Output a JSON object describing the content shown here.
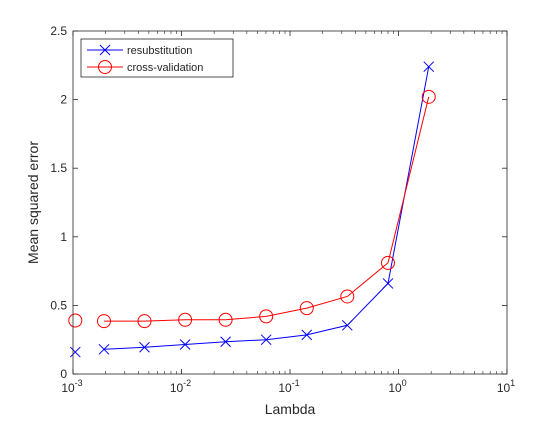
{
  "chart_data": {
    "type": "line",
    "title": "",
    "xlabel": "Lambda",
    "ylabel": "Mean squared error",
    "xscale": "log",
    "xlim": [
      0.001,
      10
    ],
    "ylim": [
      0,
      2.5
    ],
    "grid": false,
    "legend_position": "top-left",
    "x_tick_labels": [
      {
        "base": "10",
        "exp": "-3"
      },
      {
        "base": "10",
        "exp": "-2"
      },
      {
        "base": "10",
        "exp": "-1"
      },
      {
        "base": "10",
        "exp": "0"
      },
      {
        "base": "10",
        "exp": "1"
      }
    ],
    "y_tick_labels": [
      "0",
      "0.5",
      "1",
      "1.5",
      "2",
      "2.5"
    ],
    "series": [
      {
        "name": "resubstitution",
        "color": "#0000ff",
        "marker": "x",
        "x": [
          0.00105,
          0.00193,
          0.00456,
          0.0108,
          0.0255,
          0.0603,
          0.1427,
          0.3374,
          0.8,
          1.9
        ],
        "y": [
          0.16,
          0.18,
          0.195,
          0.215,
          0.235,
          0.25,
          0.285,
          0.355,
          0.66,
          2.24
        ],
        "line_from_index": 1
      },
      {
        "name": "cross-validation",
        "color": "#ff0000",
        "marker": "circle",
        "x": [
          0.00105,
          0.00193,
          0.00456,
          0.0108,
          0.0255,
          0.0603,
          0.1427,
          0.3374,
          0.8,
          1.9
        ],
        "y": [
          0.39,
          0.385,
          0.385,
          0.395,
          0.395,
          0.42,
          0.48,
          0.565,
          0.81,
          2.02
        ],
        "line_from_index": 1
      }
    ]
  }
}
